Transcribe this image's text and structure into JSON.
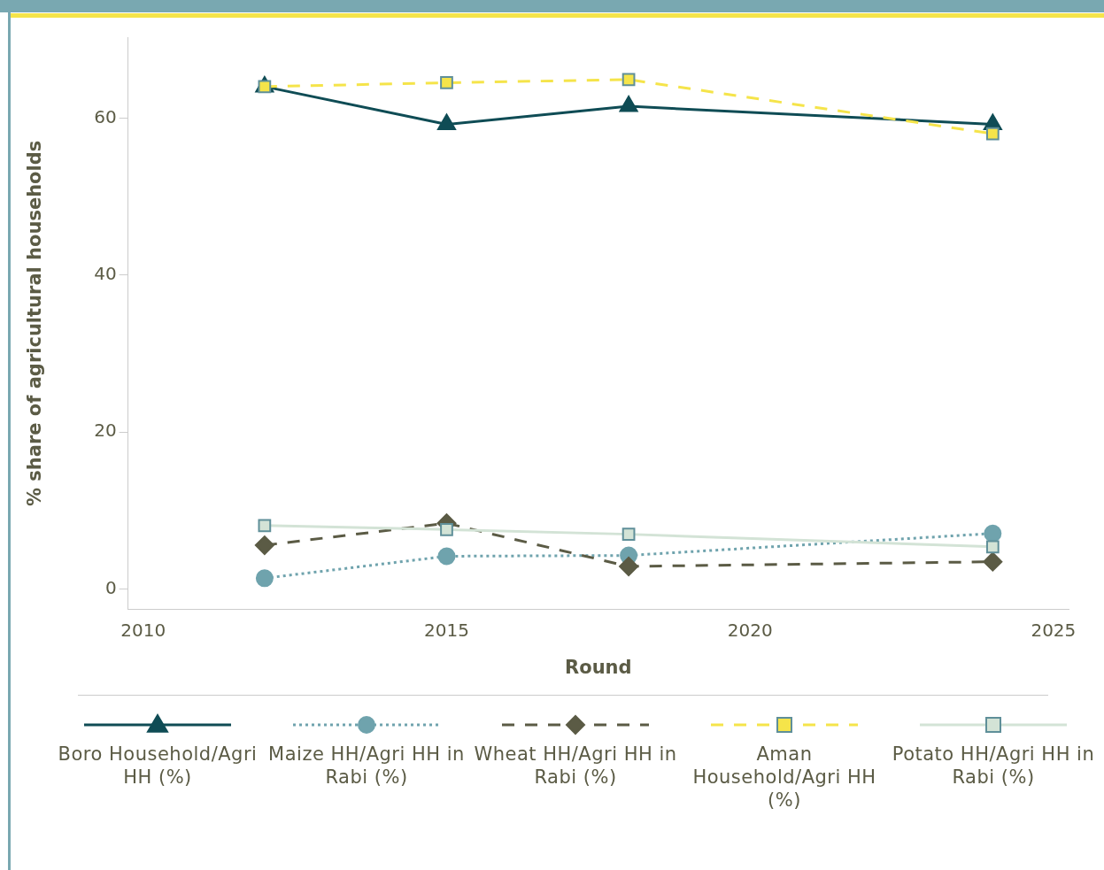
{
  "chart_data": {
    "type": "line",
    "xlabel": "Round",
    "ylabel": "% share of agricultural households",
    "xlim": [
      2009.75,
      2025.25
    ],
    "xticks": [
      2010,
      2015,
      2020,
      2025
    ],
    "ylim": [
      -2.6,
      70.3
    ],
    "yticks": [
      0,
      20,
      40,
      60
    ],
    "grid": false,
    "legend": "bottom",
    "series": [
      {
        "name": "Boro Household/Agri HH (%)",
        "color": "#0f4c55",
        "marker": "triangle",
        "line_style": "solid",
        "x": [
          2012,
          2015,
          2018,
          2024
        ],
        "values": [
          64.0,
          59.2,
          61.5,
          59.2
        ]
      },
      {
        "name": "Maize HH/Agri HH in Rabi (%)",
        "color": "#6fa3ad",
        "marker": "circle",
        "line_style": "dotted",
        "x": [
          2012,
          2015,
          2018,
          2024
        ],
        "values": [
          1.4,
          4.2,
          4.3,
          7.1
        ]
      },
      {
        "name": "Wheat HH/Agri HH in Rabi (%)",
        "color": "#5b5b45",
        "marker": "diamond",
        "line_style": "dashed",
        "x": [
          2012,
          2015,
          2018,
          2024
        ],
        "values": [
          5.6,
          8.4,
          2.9,
          3.5
        ]
      },
      {
        "name": "Aman Household/Agri HH (%)",
        "color": "#f5e44a",
        "marker": "square",
        "line_style": "dashed",
        "x": [
          2012,
          2015,
          2018,
          2024
        ],
        "values": [
          64.0,
          64.5,
          64.9,
          58.0
        ]
      },
      {
        "name": "Potato HH/Agri HH in Rabi (%)",
        "color": "#d3e3d6",
        "marker": "square",
        "line_style": "solid",
        "x": [
          2012,
          2015,
          2018,
          2024
        ],
        "values": [
          8.1,
          7.6,
          7.0,
          5.4
        ]
      }
    ]
  }
}
